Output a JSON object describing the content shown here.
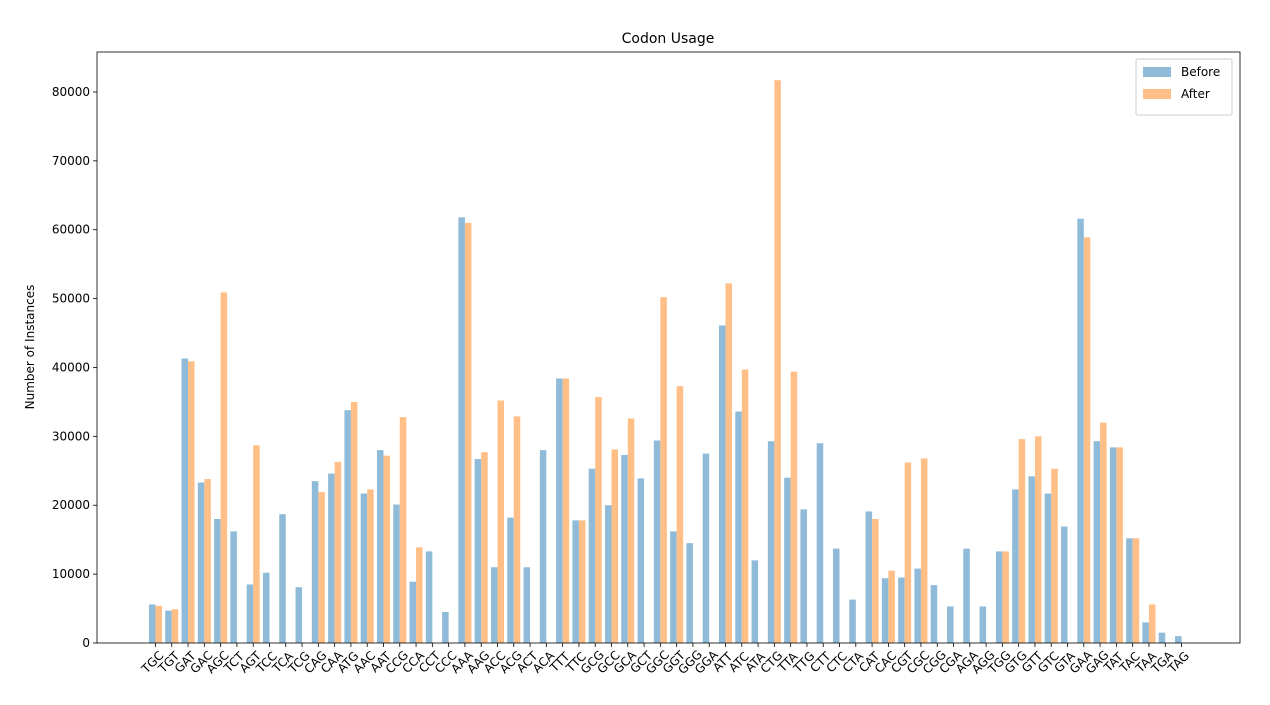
{
  "chart_data": {
    "type": "bar",
    "title": "Codon Usage",
    "ylabel": "Number of Instances",
    "categories": [
      "TGC",
      "TGT",
      "GAT",
      "GAC",
      "AGC",
      "TCT",
      "AGT",
      "TCC",
      "TCA",
      "TCG",
      "CAG",
      "CAA",
      "ATG",
      "AAC",
      "AAT",
      "CCG",
      "CCA",
      "CCT",
      "CCC",
      "AAA",
      "AAG",
      "ACC",
      "ACG",
      "ACT",
      "ACA",
      "TTT",
      "TTC",
      "GCG",
      "GCC",
      "GCA",
      "GCT",
      "GGC",
      "GGT",
      "GGG",
      "GGA",
      "ATT",
      "ATC",
      "ATA",
      "CTG",
      "TTA",
      "TTG",
      "CTT",
      "CTC",
      "CTA",
      "CAT",
      "CAC",
      "CGT",
      "CGC",
      "CGG",
      "CGA",
      "AGA",
      "AGG",
      "TGG",
      "GTG",
      "GTT",
      "GTC",
      "GTA",
      "GAA",
      "GAG",
      "TAT",
      "TAC",
      "TAA",
      "TGA",
      "TAG"
    ],
    "series": [
      {
        "name": "Before",
        "color": "#8fbbd9",
        "values": [
          5600,
          4700,
          41300,
          23300,
          18000,
          16200,
          8500,
          10200,
          18700,
          8100,
          23500,
          24600,
          33800,
          21700,
          28000,
          20100,
          8900,
          13300,
          4500,
          61800,
          26700,
          11000,
          18200,
          11000,
          28000,
          38400,
          17800,
          25300,
          20000,
          27300,
          23900,
          29400,
          16200,
          14500,
          27500,
          46100,
          33600,
          12000,
          29300,
          24000,
          19400,
          29000,
          13700,
          6300,
          19100,
          9400,
          9500,
          10800,
          8400,
          5300,
          13700,
          5300,
          13300,
          22300,
          24200,
          21700,
          16900,
          61600,
          29300,
          28400,
          15200,
          3000,
          1500,
          1000
        ]
      },
      {
        "name": "After",
        "color": "#ffbf86",
        "values": [
          5400,
          4900,
          40900,
          23800,
          50900,
          0,
          28700,
          0,
          0,
          0,
          21900,
          26300,
          35000,
          22300,
          27200,
          32800,
          13900,
          0,
          0,
          61000,
          27700,
          35200,
          32900,
          0,
          0,
          38400,
          17800,
          35700,
          28100,
          32600,
          0,
          50200,
          37300,
          0,
          0,
          52200,
          39700,
          0,
          81700,
          39400,
          0,
          0,
          0,
          0,
          18000,
          10500,
          26200,
          26800,
          0,
          0,
          0,
          0,
          13300,
          29600,
          30000,
          25300,
          0,
          58900,
          32000,
          28400,
          15200,
          5600,
          0,
          0
        ]
      }
    ],
    "ylim": [
      0,
      85800
    ],
    "yticks": [
      0,
      10000,
      20000,
      30000,
      40000,
      50000,
      60000,
      70000,
      80000
    ],
    "legend": "upper right"
  }
}
